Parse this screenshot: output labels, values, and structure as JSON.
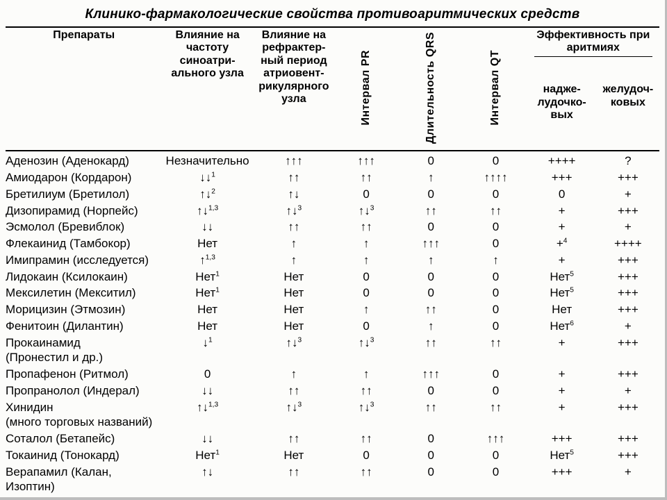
{
  "title": "Клинико-фармакологические свойства противоаритмических средств",
  "columns": {
    "drug": "Препараты",
    "sa_rate": "Влияние на частоту синоатри­ального узла",
    "av_refractory": "Влияние на рефрактер­ный период атриовент­рикуляр­ного узла",
    "pr": "Интервал PR",
    "qrs": "Длительность QRS",
    "qt": "Интервал QT",
    "eff_group": "Эффективность при аритмиях",
    "eff_supra": "надже­лудочко­вых",
    "eff_vent": "желу­доч­ковых"
  },
  "rows": [
    {
      "drug": "Аденозин (Аденокард)",
      "sa": "Незначительно",
      "av": "↑↑↑",
      "pr": "↑↑↑",
      "qrs": "0",
      "qt": "0",
      "sup": "++++",
      "ven": "?"
    },
    {
      "drug": "Амиодарон (Кордарон)",
      "sa": "↓↓<sup>1</sup>",
      "av": "↑↑",
      "pr": "↑↑",
      "qrs": "↑",
      "qt": "↑↑↑↑",
      "sup": "+++",
      "ven": "+++"
    },
    {
      "drug": "Бретилиум (Бретилол)",
      "sa": "↑↓<sup>2</sup>",
      "av": "↑↓",
      "pr": "0",
      "qrs": "0",
      "qt": "0",
      "sup": "0",
      "ven": "+"
    },
    {
      "drug": "Дизопирамид (Норпейс)",
      "sa": "↑↓<sup>1,3</sup>",
      "av": "↑↓<sup>3</sup>",
      "pr": "↑↓<sup>3</sup>",
      "qrs": "↑↑",
      "qt": "↑↑",
      "sup": "+",
      "ven": "+++"
    },
    {
      "drug": "Эсмолол (Бревиблок)",
      "sa": "↓↓",
      "av": "↑↑",
      "pr": "↑↑",
      "qrs": "0",
      "qt": "0",
      "sup": "+",
      "ven": "+"
    },
    {
      "drug": "Флекаинид (Тамбокор)",
      "sa": "Нет",
      "av": "↑",
      "pr": "↑",
      "qrs": "↑↑↑",
      "qt": "0",
      "sup": "+<sup>4</sup>",
      "ven": "++++"
    },
    {
      "drug": "Имипрамин (исследуется)",
      "sa": "↑<sup>1,3</sup>",
      "av": "↑",
      "pr": "↑",
      "qrs": "↑",
      "qt": "↑",
      "sup": "+",
      "ven": "+++"
    },
    {
      "drug": "Лидокаин (Ксилокаин)",
      "sa": "Нет<sup>1</sup>",
      "av": "Нет",
      "pr": "0",
      "qrs": "0",
      "qt": "0",
      "sup": "Нет<sup>5</sup>",
      "ven": "+++"
    },
    {
      "drug": "Мексилетин (Мекситил)",
      "sa": "Нет<sup>1</sup>",
      "av": "Нет",
      "pr": "0",
      "qrs": "0",
      "qt": "0",
      "sup": "Нет<sup>5</sup>",
      "ven": "+++"
    },
    {
      "drug": "Морицизин (Этмозин)",
      "sa": "Нет",
      "av": "Нет",
      "pr": "↑",
      "qrs": "↑↑",
      "qt": "0",
      "sup": "Нет",
      "ven": "+++"
    },
    {
      "drug": "Фенитоин (Дилантин)",
      "sa": "Нет",
      "av": "Нет",
      "pr": "0",
      "qrs": "↑",
      "qt": "0",
      "sup": "Нет<sup>6</sup>",
      "ven": "+"
    },
    {
      "drug": "Прокаинамид (Пронестил и др.)",
      "sa": "↓<sup>1</sup>",
      "av": "↑↓<sup>3</sup>",
      "pr": "↑↓<sup>3</sup>",
      "qrs": "↑↑",
      "qt": "↑↑",
      "sup": "+",
      "ven": "+++"
    },
    {
      "drug": "Пропафенон (Ритмол)",
      "sa": "0",
      "av": "↑",
      "pr": "↑",
      "qrs": "↑↑↑",
      "qt": "0",
      "sup": "+",
      "ven": "+++"
    },
    {
      "drug": "Пропранолол (Индерал)",
      "sa": "↓↓",
      "av": "↑↑",
      "pr": "↑↑",
      "qrs": "0",
      "qt": "0",
      "sup": "+",
      "ven": "+"
    },
    {
      "drug": "Хинидин (много торговых названий)",
      "sa": "↑↓<sup>1,3</sup>",
      "av": "↑↓<sup>3</sup>",
      "pr": "↑↓<sup>3</sup>",
      "qrs": "↑↑",
      "qt": "↑↑",
      "sup": "+",
      "ven": "+++"
    },
    {
      "drug": "Соталол (Бетапейс)",
      "sa": "↓↓",
      "av": "↑↑",
      "pr": "↑↑",
      "qrs": "0",
      "qt": "↑↑↑",
      "sup": "+++",
      "ven": "+++"
    },
    {
      "drug": "Токаинид (Тонокард)",
      "sa": "Нет<sup>1</sup>",
      "av": "Нет",
      "pr": "0",
      "qrs": "0",
      "qt": "0",
      "sup": "Нет<sup>5</sup>",
      "ven": "+++"
    },
    {
      "drug": "Верапамил (Калан, Изоптин)",
      "sa": "↑↓",
      "av": "↑↑",
      "pr": "↑↑",
      "qrs": "0",
      "qt": "0",
      "sup": "+++",
      "ven": "+"
    }
  ],
  "style": {
    "bg": "#fcfcfa",
    "text": "#000000",
    "border": "#000000",
    "shadow": "#bdbdbd",
    "title_fontsize": 19,
    "header_fontsize": 16,
    "cell_fontsize": 17
  }
}
